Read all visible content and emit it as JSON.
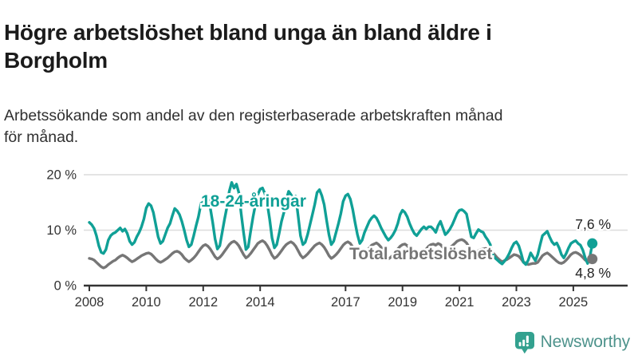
{
  "header": {
    "title_lines": [
      "Högre arbetslöshet bland unga än bland äldre i",
      "Borgholm"
    ],
    "subtitle_lines": [
      "Arbetssökande som andel av den registerbaserade arbetskraften månad",
      "för månad."
    ]
  },
  "chart_data": {
    "type": "line",
    "title": "Högre arbetslöshet bland unga än bland äldre i Borgholm",
    "subtitle": "Arbetssökande som andel av den registerbaserade arbetskraften månad för månad.",
    "x_start_year": 2008,
    "x_end_label_month": "2025-09",
    "frequency": "monthly",
    "grid": "horizontal-only",
    "legend_position": "inline-labels",
    "ylim": [
      0,
      21
    ],
    "y_ticks": [
      {
        "value": 20,
        "label": "20 %"
      },
      {
        "value": 10,
        "label": "10 %"
      },
      {
        "value": 0,
        "label": "0 %"
      }
    ],
    "x_ticks": [
      {
        "year": 2008,
        "label": "2008"
      },
      {
        "year": 2010,
        "label": "2010"
      },
      {
        "year": 2012,
        "label": "2012"
      },
      {
        "year": 2014,
        "label": "2014"
      },
      {
        "year": 2017,
        "label": "2017"
      },
      {
        "year": 2019,
        "label": "2019"
      },
      {
        "year": 2021,
        "label": "2021"
      },
      {
        "year": 2023,
        "label": "2023"
      },
      {
        "year": 2025,
        "label": "2025"
      }
    ],
    "series": [
      {
        "name": "18-24-åringar",
        "color": "#10a096",
        "end_label": "7,6 %",
        "end_value": 7.6,
        "values": [
          11.4,
          11.0,
          10.3,
          9.0,
          7.2,
          6.0,
          5.8,
          6.5,
          8.2,
          9.0,
          9.4,
          9.6,
          10.0,
          10.4,
          9.8,
          10.2,
          9.4,
          8.0,
          7.4,
          7.8,
          8.8,
          9.6,
          10.6,
          12.0,
          14.0,
          14.8,
          14.4,
          13.2,
          11.0,
          8.8,
          7.6,
          8.0,
          9.2,
          10.4,
          11.2,
          12.6,
          13.9,
          13.5,
          12.8,
          11.6,
          10.0,
          8.2,
          7.0,
          7.4,
          9.0,
          10.8,
          12.4,
          14.6,
          16.2,
          16.4,
          15.6,
          14.0,
          11.4,
          8.4,
          6.6,
          7.2,
          9.6,
          12.0,
          14.2,
          17.0,
          18.6,
          17.6,
          18.3,
          16.8,
          13.0,
          9.6,
          6.5,
          7.0,
          9.8,
          12.4,
          14.6,
          16.4,
          17.4,
          17.6,
          16.6,
          14.8,
          12.0,
          8.6,
          6.8,
          7.4,
          9.4,
          11.6,
          13.2,
          15.4,
          17.0,
          16.4,
          15.6,
          16.1,
          12.6,
          9.0,
          7.4,
          7.8,
          9.2,
          11.0,
          12.8,
          14.6,
          16.8,
          17.3,
          16.2,
          14.6,
          11.8,
          9.2,
          7.4,
          8.0,
          9.6,
          11.2,
          13.0,
          15.2,
          16.2,
          16.5,
          15.6,
          13.8,
          11.4,
          9.2,
          7.6,
          8.2,
          9.6,
          10.6,
          11.6,
          12.2,
          12.6,
          12.2,
          11.4,
          10.4,
          9.6,
          8.8,
          8.2,
          8.6,
          9.2,
          10.0,
          11.2,
          12.8,
          13.6,
          13.2,
          12.4,
          11.2,
          10.2,
          9.4,
          9.0,
          9.6,
          10.2,
          10.6,
          10.2,
          10.6,
          10.6,
          10.2,
          9.6,
          10.8,
          11.6,
          10.4,
          9.2,
          9.6,
          10.2,
          11.0,
          12.0,
          13.0,
          13.6,
          13.7,
          13.4,
          12.9,
          10.8,
          8.8,
          8.6,
          9.4,
          10.1,
          9.8,
          9.6,
          8.8,
          8.2,
          7.4,
          5.6,
          5.0,
          4.6,
          4.2,
          3.9,
          4.4,
          5.0,
          5.8,
          6.8,
          7.6,
          7.9,
          7.2,
          5.8,
          4.2,
          3.8,
          4.6,
          5.9,
          5.2,
          4.5,
          5.6,
          7.4,
          9.0,
          9.4,
          9.8,
          8.8,
          7.9,
          7.4,
          7.7,
          6.8,
          5.6,
          5.0,
          5.8,
          6.8,
          7.6,
          7.9,
          8.1,
          7.6,
          7.3,
          6.4,
          5.0,
          4.0,
          5.2,
          7.6
        ]
      },
      {
        "name": "Total arbetslöshet",
        "color": "#767676",
        "end_label": "4,8 %",
        "end_value": 4.8,
        "values": [
          4.9,
          4.8,
          4.6,
          4.2,
          3.8,
          3.4,
          3.2,
          3.4,
          3.8,
          4.1,
          4.4,
          4.6,
          5.0,
          5.3,
          5.5,
          5.3,
          5.0,
          4.6,
          4.3,
          4.5,
          4.8,
          5.1,
          5.4,
          5.6,
          5.8,
          5.9,
          5.7,
          5.3,
          4.8,
          4.4,
          4.2,
          4.4,
          4.7,
          5.0,
          5.4,
          5.8,
          6.1,
          6.2,
          6.0,
          5.6,
          5.0,
          4.6,
          4.3,
          4.6,
          5.0,
          5.5,
          6.1,
          6.7,
          7.2,
          7.4,
          7.1,
          6.6,
          5.9,
          5.2,
          4.8,
          5.1,
          5.6,
          6.2,
          6.8,
          7.4,
          7.8,
          8.0,
          7.7,
          7.2,
          6.4,
          5.6,
          5.0,
          5.3,
          5.8,
          6.4,
          7.0,
          7.6,
          7.9,
          8.1,
          7.8,
          7.2,
          6.4,
          5.5,
          4.9,
          5.2,
          5.7,
          6.3,
          6.9,
          7.4,
          7.7,
          7.9,
          7.6,
          7.1,
          6.3,
          5.5,
          5.0,
          5.3,
          5.7,
          6.2,
          6.7,
          7.2,
          7.5,
          7.7,
          7.4,
          6.9,
          6.2,
          5.4,
          4.9,
          5.2,
          5.6,
          6.1,
          6.7,
          7.3,
          7.7,
          7.9,
          7.6,
          7.0,
          6.2,
          5.4,
          4.9,
          5.2,
          5.7,
          6.2,
          6.8,
          7.3,
          7.5,
          7.7,
          7.4,
          6.9,
          6.1,
          5.3,
          4.8,
          5.1,
          5.5,
          6.0,
          6.6,
          7.1,
          7.4,
          7.5,
          7.2,
          6.7,
          6.0,
          5.3,
          4.9,
          5.2,
          5.6,
          6.1,
          6.6,
          7.1,
          7.4,
          7.5,
          7.3,
          7.6,
          7.4,
          6.9,
          6.4,
          6.6,
          6.9,
          7.2,
          7.6,
          8.0,
          8.2,
          8.3,
          8.1,
          7.7,
          7.0,
          6.3,
          5.8,
          6.0,
          6.3,
          6.5,
          6.6,
          6.7,
          6.6,
          6.4,
          6.0,
          5.5,
          5.0,
          4.6,
          4.3,
          4.5,
          4.7,
          5.0,
          5.3,
          5.6,
          5.5,
          5.3,
          4.8,
          4.2,
          4.1,
          3.8,
          3.9,
          4.0,
          4.0,
          4.2,
          4.8,
          5.4,
          5.7,
          5.9,
          5.6,
          5.2,
          4.8,
          4.4,
          4.1,
          4.0,
          4.2,
          4.6,
          5.1,
          5.6,
          5.9,
          6.0,
          5.8,
          5.5,
          5.1,
          4.6,
          4.4,
          4.6,
          4.8
        ]
      }
    ]
  },
  "footer": {
    "brand": "Newsworthy"
  },
  "colors": {
    "accent_teal": "#10a096",
    "series_gray": "#767676",
    "axis": "#333333",
    "gridline": "#dcdcdc",
    "title_text": "#1b1b1b",
    "brand_text": "#4e938c",
    "brand_icon": "#33a18f"
  }
}
